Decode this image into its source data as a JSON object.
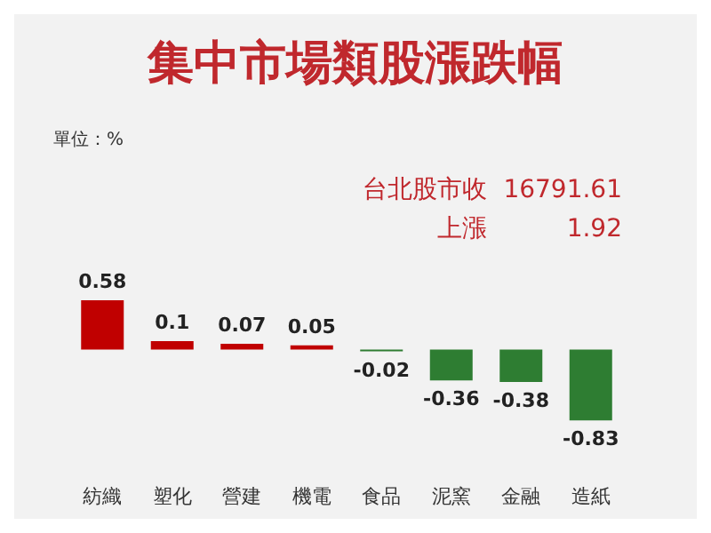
{
  "chart_data": {
    "type": "bar",
    "title": "集中市場類股漲跌幅",
    "categories": [
      "紡織",
      "塑化",
      "營建",
      "機電",
      "食品",
      "泥窯",
      "金融",
      "造紙"
    ],
    "values": [
      0.58,
      0.1,
      0.07,
      0.05,
      -0.02,
      -0.36,
      -0.38,
      -0.83
    ],
    "colors": [
      "#c00000",
      "#c00000",
      "#c00000",
      "#c00000",
      "#2e7d32",
      "#2e7d32",
      "#2e7d32",
      "#2e7d32"
    ],
    "data_labels": true,
    "annotations": [
      "單位：%",
      "台北股市收",
      "16791.61",
      "上漲",
      "1.92"
    ]
  }
}
